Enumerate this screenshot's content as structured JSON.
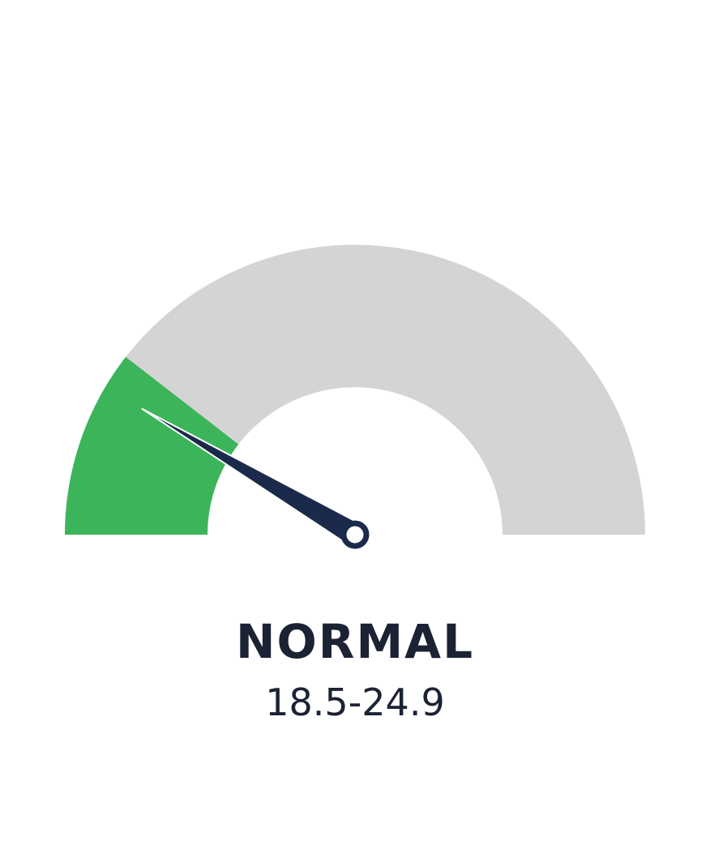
{
  "gauge": {
    "filled_fraction": 0.21,
    "needle_fraction": 0.17,
    "colors": {
      "filled": "#3cb55a",
      "track": "#d4d4d4",
      "needle": "#1b2a4a",
      "hub_fill": "#ffffff"
    }
  },
  "label": {
    "category": "NORMAL",
    "range": "18.5-24.9"
  }
}
